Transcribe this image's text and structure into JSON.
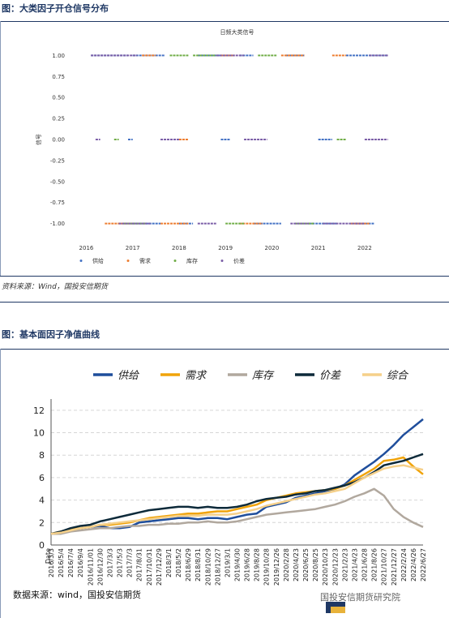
{
  "section1": {
    "title": "图：大类因子开仓信号分布",
    "source": "资料来源：Wind，国投安信期货"
  },
  "section2": {
    "title": "图：基本面因子净值曲线",
    "source": "数据来源：wind，国投安信期货"
  },
  "watermark": "国投安信期货研究院",
  "chart_data": [
    {
      "type": "scatter",
      "title": "日频大类信号",
      "ylabel": "信号",
      "xlabel": "",
      "x_ticks": [
        "2016",
        "2017",
        "2018",
        "2019",
        "2020",
        "2021",
        "2022"
      ],
      "y_ticks": [
        "1.00",
        "0.75",
        "0.50",
        "0.25",
        "0.00",
        "-0.25",
        "-0.50",
        "-0.75",
        "-1.00"
      ],
      "ylim": [
        -1.1,
        1.1
      ],
      "xlim": [
        2015.8,
        2022.7
      ],
      "legend_position": "bottom",
      "series": [
        {
          "name": "供给",
          "color": "#4472c4"
        },
        {
          "name": "需求",
          "color": "#ed7d31"
        },
        {
          "name": "库存",
          "color": "#70ad47"
        },
        {
          "name": "价差",
          "color": "#7b5ea7"
        }
      ],
      "signal_segments": {
        "供给": {
          "1": [
            [
              2016.1,
              2016.9
            ],
            [
              2017.0,
              2017.7
            ],
            [
              2018.4,
              2018.9
            ],
            [
              2019.3,
              2019.6
            ],
            [
              2020.3,
              2020.7
            ],
            [
              2021.6,
              2022.5
            ]
          ],
          "0": [
            [
              2016.9,
              2017.0
            ],
            [
              2018.9,
              2019.1
            ],
            [
              2021.0,
              2021.3
            ]
          ],
          "-1": [
            [
              2017.0,
              2017.6
            ],
            [
              2018.0,
              2018.3
            ],
            [
              2019.6,
              2020.2
            ],
            [
              2020.8,
              2021.4
            ],
            [
              2021.8,
              2022.2
            ]
          ]
        },
        "需求": {
          "1": [
            [
              2017.2,
              2017.5
            ],
            [
              2018.9,
              2019.2
            ],
            [
              2020.2,
              2020.7
            ],
            [
              2021.3,
              2021.6
            ]
          ],
          "0": [
            [
              2018.0,
              2018.2
            ]
          ],
          "-1": [
            [
              2016.4,
              2017.0
            ],
            [
              2017.6,
              2018.2
            ],
            [
              2019.3,
              2019.8
            ],
            [
              2021.7,
              2022.1
            ]
          ]
        },
        "库存": {
          "1": [
            [
              2017.8,
              2018.2
            ],
            [
              2018.3,
              2018.8
            ],
            [
              2019.7,
              2020.1
            ]
          ],
          "0": [
            [
              2016.6,
              2016.7
            ],
            [
              2021.4,
              2021.6
            ]
          ],
          "-1": [
            [
              2016.8,
              2017.3
            ],
            [
              2019.0,
              2019.4
            ],
            [
              2020.5,
              2020.9
            ]
          ]
        },
        "价差": {
          "1": [
            [
              2016.1,
              2017.1
            ],
            [
              2018.8,
              2019.4
            ],
            [
              2022.1,
              2022.5
            ]
          ],
          "0": [
            [
              2016.2,
              2016.3
            ],
            [
              2017.6,
              2018.0
            ],
            [
              2019.4,
              2019.9
            ],
            [
              2022.0,
              2022.5
            ]
          ],
          "-1": [
            [
              2016.7,
              2017.4
            ],
            [
              2018.4,
              2018.8
            ],
            [
              2020.4,
              2020.8
            ],
            [
              2021.1,
              2022.0
            ]
          ]
        }
      }
    },
    {
      "type": "line",
      "title": "",
      "xlabel": "Date",
      "ylabel": "",
      "ylim": [
        0,
        13
      ],
      "y_ticks": [
        "0",
        "2",
        "4",
        "6",
        "8",
        "10",
        "12"
      ],
      "grid": true,
      "legend_position": "top",
      "categories": [
        "2016/3/3",
        "2016/5/4",
        "2016/7/4",
        "2016/9/4",
        "2016/11/01",
        "2016/12/30",
        "2017/3/3",
        "2017/5/3",
        "2017/7/3",
        "2017/8/31",
        "2017/10/31",
        "2017/12/29",
        "2018/3/1",
        "2018/5/2",
        "2018/6/29",
        "2018/8/31",
        "2018/10/29",
        "2018/12/27",
        "2019/3/1",
        "2019/4/30",
        "2019/6/28",
        "2019/8/28",
        "2019/10/28",
        "2019/12/26",
        "2020/2/28",
        "2020/4/23",
        "2020/6/25",
        "2020/8/25",
        "2020/10/23",
        "2020/12/23",
        "2021/2/23",
        "2021/4/23",
        "2021/6/28",
        "2021/8/26",
        "2021/10/27",
        "2021/12/27",
        "2022/2/24",
        "2022/4/26",
        "2022/6/27"
      ],
      "series": [
        {
          "name": "供给",
          "color": "#1f4e9c",
          "values": [
            1.0,
            1.1,
            1.3,
            1.5,
            1.6,
            1.7,
            1.5,
            1.5,
            1.6,
            2.0,
            2.1,
            2.2,
            2.3,
            2.4,
            2.4,
            2.3,
            2.4,
            2.4,
            2.3,
            2.5,
            2.7,
            2.8,
            3.4,
            3.6,
            3.8,
            4.2,
            4.4,
            4.6,
            4.8,
            5.0,
            5.4,
            6.2,
            6.8,
            7.4,
            8.1,
            8.9,
            9.8,
            10.5,
            11.2
          ]
        },
        {
          "name": "需求",
          "color": "#f0a30a",
          "values": [
            1.0,
            1.2,
            1.4,
            1.5,
            1.6,
            1.8,
            1.8,
            1.9,
            2.0,
            2.2,
            2.4,
            2.5,
            2.6,
            2.7,
            2.8,
            2.8,
            2.9,
            3.0,
            3.0,
            3.2,
            3.4,
            3.6,
            4.0,
            4.2,
            4.4,
            4.6,
            4.7,
            4.8,
            4.9,
            5.0,
            5.3,
            5.8,
            6.3,
            6.8,
            7.5,
            7.6,
            7.8,
            7.0,
            6.3
          ]
        },
        {
          "name": "库存",
          "color": "#b1a89e",
          "values": [
            1.0,
            1.0,
            1.2,
            1.3,
            1.4,
            1.5,
            1.5,
            1.6,
            1.7,
            1.7,
            1.8,
            1.8,
            1.9,
            1.9,
            2.0,
            2.0,
            2.1,
            2.0,
            2.0,
            2.1,
            2.3,
            2.5,
            2.7,
            2.8,
            2.9,
            3.0,
            3.1,
            3.2,
            3.4,
            3.6,
            3.9,
            4.3,
            4.6,
            5.0,
            4.4,
            3.2,
            2.5,
            2.0,
            1.6
          ]
        },
        {
          "name": "价差",
          "color": "#0d2a3a",
          "values": [
            1.0,
            1.2,
            1.5,
            1.7,
            1.8,
            2.1,
            2.3,
            2.5,
            2.7,
            2.9,
            3.1,
            3.2,
            3.3,
            3.4,
            3.4,
            3.3,
            3.4,
            3.3,
            3.3,
            3.4,
            3.6,
            3.9,
            4.1,
            4.2,
            4.3,
            4.5,
            4.6,
            4.8,
            4.9,
            5.1,
            5.3,
            5.6,
            6.0,
            6.5,
            7.1,
            7.3,
            7.5,
            7.8,
            8.1
          ]
        },
        {
          "name": "综合",
          "color": "#f5d08a",
          "values": [
            1.0,
            1.1,
            1.3,
            1.5,
            1.6,
            1.8,
            1.9,
            2.0,
            2.1,
            2.2,
            2.3,
            2.4,
            2.5,
            2.6,
            2.6,
            2.6,
            2.7,
            2.7,
            2.7,
            2.8,
            3.0,
            3.2,
            3.5,
            3.7,
            3.9,
            4.1,
            4.3,
            4.5,
            4.6,
            4.8,
            5.0,
            5.5,
            6.0,
            6.4,
            6.8,
            7.0,
            7.1,
            6.9,
            6.7
          ]
        }
      ]
    }
  ]
}
